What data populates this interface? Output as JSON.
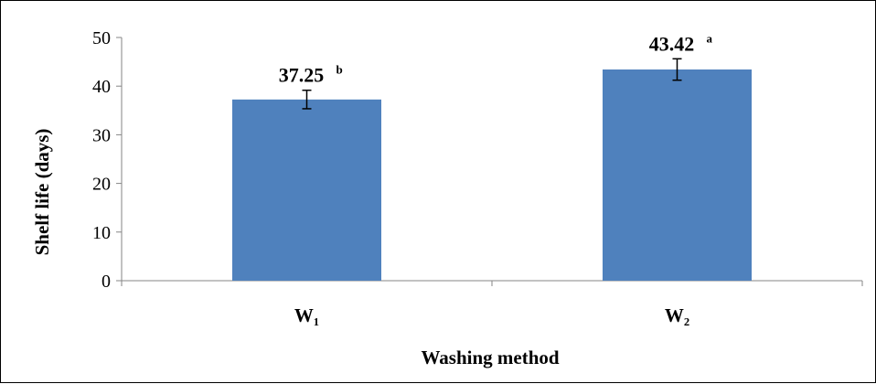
{
  "chart_data": {
    "type": "bar",
    "categories": [
      "W₁",
      "W₂"
    ],
    "values": [
      37.25,
      43.42
    ],
    "error": [
      1.9,
      2.2
    ],
    "data_labels": [
      {
        "value": "37.25",
        "letter": "b"
      },
      {
        "value": "43.42",
        "letter": "a"
      }
    ],
    "title": "",
    "xlabel": "Washing method",
    "ylabel": "Shelf life (days)",
    "ylim": [
      0,
      50
    ],
    "yticks": [
      0,
      10,
      20,
      30,
      40,
      50
    ],
    "grid": false,
    "legend": "none",
    "bar_color": "#4F81BD"
  }
}
